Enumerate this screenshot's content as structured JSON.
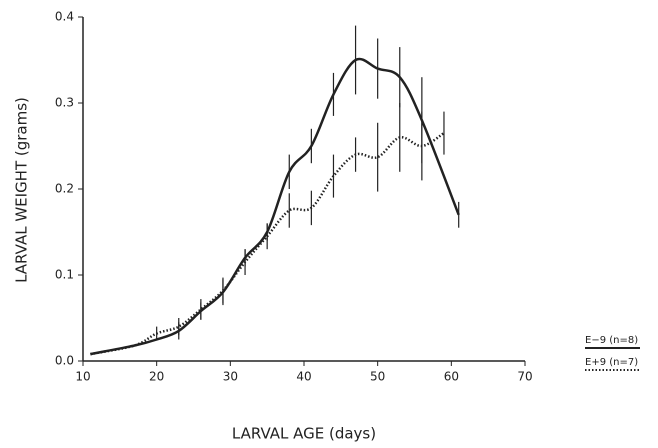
{
  "chart_data": {
    "type": "line",
    "xlabel": "LARVAL AGE (days)",
    "ylabel": "LARVAL WEIGHT (grams)",
    "xlim": [
      10,
      70
    ],
    "xticks": [
      10,
      20,
      30,
      40,
      50,
      60,
      70
    ],
    "ylim": [
      0,
      0.4
    ],
    "yticks": [
      {
        "value": 0,
        "label": "0.0"
      },
      0.1,
      0.2,
      0.3,
      0.4
    ],
    "series": [
      {
        "name": "E−9 (n=8)",
        "color": "#222222",
        "dash": false,
        "x": [
          11,
          17,
          20,
          23,
          26,
          29,
          32,
          35,
          38,
          41,
          44,
          47,
          50,
          53,
          56,
          61
        ],
        "values": [
          0.008,
          0.018,
          0.025,
          0.035,
          0.058,
          0.08,
          0.12,
          0.15,
          0.22,
          0.25,
          0.31,
          0.35,
          0.34,
          0.33,
          0.28,
          0.17
        ],
        "errors": [
          null,
          null,
          null,
          0.01,
          0.01,
          0.015,
          0.01,
          0.01,
          0.02,
          0.02,
          0.025,
          0.04,
          0.035,
          0.035,
          0.05,
          0.015
        ]
      },
      {
        "name": "E+9 (n=7)",
        "color": "#222222",
        "dash": true,
        "x": [
          11,
          17,
          20,
          23,
          26,
          29,
          32,
          35,
          38,
          41,
          44,
          47,
          50,
          53,
          56,
          59
        ],
        "values": [
          0.008,
          0.018,
          0.032,
          0.04,
          0.06,
          0.082,
          0.115,
          0.145,
          0.175,
          0.178,
          0.215,
          0.24,
          0.237,
          0.26,
          0.25,
          0.265
        ],
        "errors": [
          null,
          null,
          0.008,
          0.01,
          0.012,
          0.015,
          0.015,
          0.015,
          0.02,
          0.02,
          0.025,
          0.02,
          0.04,
          0.04,
          0.04,
          0.025
        ]
      }
    ]
  }
}
